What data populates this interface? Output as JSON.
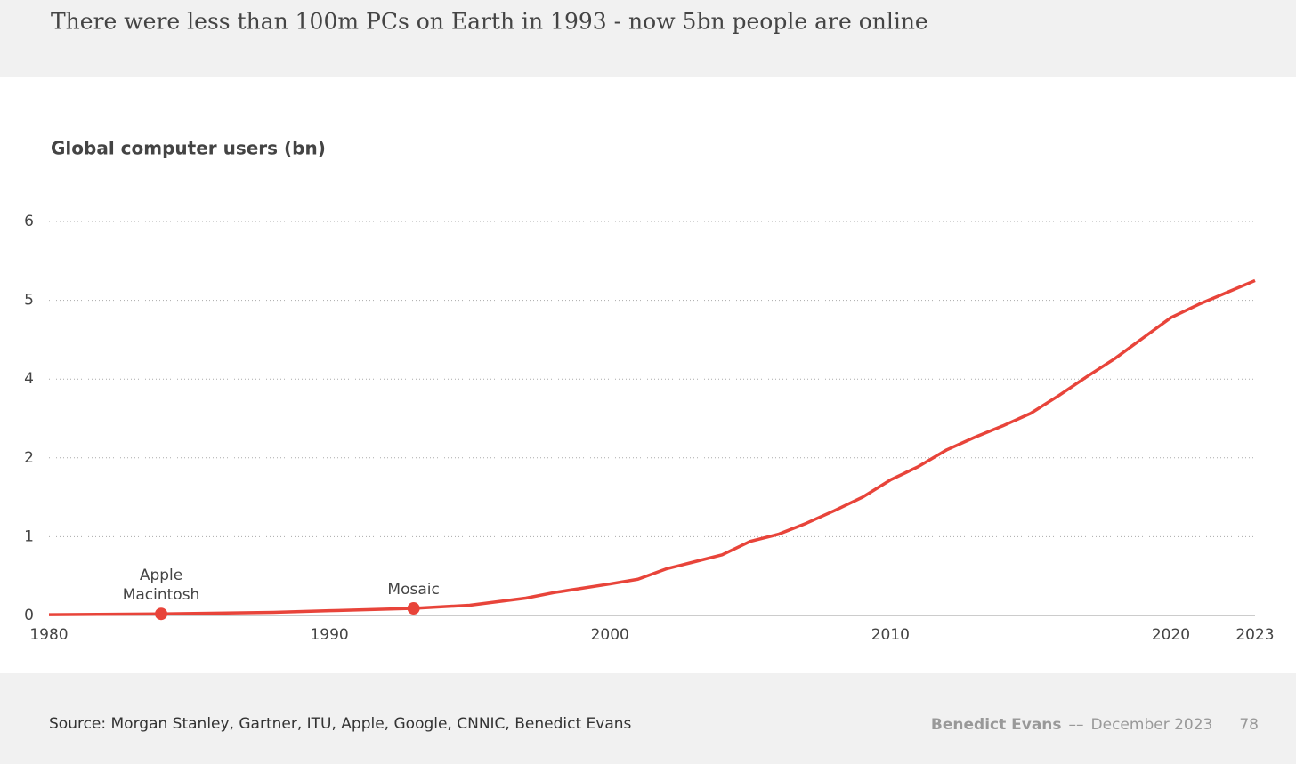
{
  "chart_data": {
    "type": "line",
    "title": "There were less than 100m PCs on Earth in 1993 - now 5bn people are online",
    "y_label": "Global computer users (bn)",
    "x": [
      1980,
      1984,
      1988,
      1990,
      1993,
      1995,
      1997,
      1998,
      2000,
      2001,
      2002,
      2003,
      2004,
      2005,
      2006,
      2007,
      2008,
      2009,
      2010,
      2011,
      2012,
      2013,
      2014,
      2015,
      2016,
      2017,
      2018,
      2019,
      2020,
      2021,
      2022,
      2023
    ],
    "series": [
      {
        "name": "Global computer users",
        "color": "#e8443a",
        "values": [
          0.01,
          0.02,
          0.04,
          0.06,
          0.09,
          0.13,
          0.22,
          0.29,
          0.4,
          0.46,
          0.59,
          0.68,
          0.77,
          0.94,
          1.03,
          1.17,
          1.33,
          1.5,
          1.72,
          1.89,
          2.2,
          2.52,
          2.81,
          3.13,
          3.58,
          4.03,
          4.26,
          4.52,
          4.78,
          4.95,
          5.1,
          5.25
        ]
      }
    ],
    "xlim": [
      1980,
      2023
    ],
    "xticks": [
      1980,
      1990,
      2000,
      2010,
      2020,
      2023
    ],
    "ylim": [
      0,
      6
    ],
    "yticks": [
      0,
      1,
      2,
      4,
      5,
      6
    ],
    "grid": true,
    "annotations": [
      {
        "text": "Apple Macintosh",
        "x": 1984,
        "value": 0.02
      },
      {
        "text": "Mosaic",
        "x": 1993,
        "value": 0.09
      }
    ]
  },
  "footer": {
    "source": "Source: Morgan Stanley, Gartner, ITU, Apple, Google, CNNIC, Benedict Evans",
    "author": "Benedict Evans",
    "separator": "––",
    "date": "December 2023",
    "page": "78"
  }
}
